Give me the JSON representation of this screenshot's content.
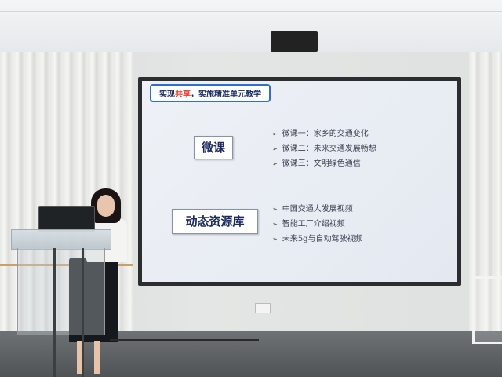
{
  "slide": {
    "title_prefix": "实现",
    "title_highlight": "共享",
    "title_suffix": "，实施精准单元教学",
    "section1": {
      "heading": "微课",
      "items": [
        "微课一：家乡的交通变化",
        "微课二：未来交通发展畅想",
        "微课三：文明绿色通信"
      ]
    },
    "section2": {
      "heading": "动态资源库",
      "items": [
        "中国交通大发展视频",
        "智能工厂介绍视频",
        "未来5g与自动驾驶视频"
      ]
    },
    "bullet_glyph": "➢"
  },
  "colors": {
    "title_border": "#2f6fd1",
    "title_highlight": "#e23a2a",
    "heading_text": "#1b2b60"
  }
}
